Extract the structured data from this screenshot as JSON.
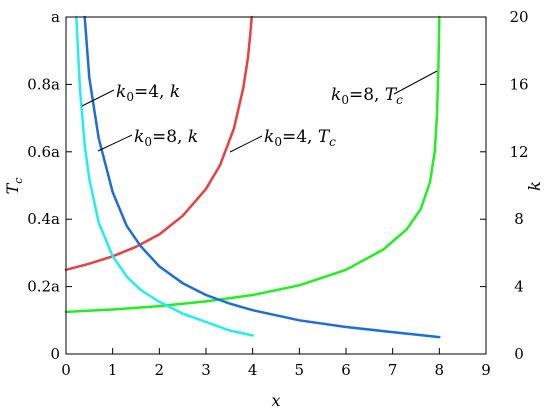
{
  "chart_data": {
    "type": "line",
    "title": "",
    "xlabel": "x",
    "ylabel_left": "T",
    "ylabel_left_sub": "c",
    "ylabel_right": "k",
    "xlim": [
      0,
      9
    ],
    "ylim_left": [
      0,
      1
    ],
    "ylim_right": [
      0,
      20
    ],
    "grid": false,
    "legend": "none",
    "x_ticks": [
      0,
      1,
      2,
      3,
      4,
      5,
      6,
      7,
      8,
      9
    ],
    "x_tick_labels": [
      "0",
      "1",
      "2",
      "3",
      "4",
      "5",
      "6",
      "7",
      "8",
      "9"
    ],
    "y_left_ticks": [
      0,
      0.2,
      0.4,
      0.6,
      0.8,
      1.0
    ],
    "y_left_tick_labels": [
      "0",
      "0.2a",
      "0.4a",
      "0.6a",
      "0.8a",
      "a"
    ],
    "y_right_ticks": [
      0,
      4,
      8,
      12,
      16,
      20
    ],
    "y_right_tick_labels": [
      "0",
      "4",
      "8",
      "12",
      "16",
      "20"
    ],
    "series": [
      {
        "axis": "left",
        "color": "#e84040",
        "x": [
          0,
          0.5,
          1.0,
          1.5,
          2.0,
          2.5,
          3.0,
          3.3,
          3.6,
          3.8,
          3.9,
          3.95,
          3.98
        ],
        "values": [
          0.25,
          0.268,
          0.29,
          0.318,
          0.355,
          0.41,
          0.49,
          0.56,
          0.67,
          0.79,
          0.88,
          0.95,
          1.0
        ]
      },
      {
        "axis": "left",
        "color": "#22ee22",
        "x": [
          0,
          1,
          2,
          3,
          4,
          5,
          6,
          6.8,
          7.3,
          7.6,
          7.8,
          7.9,
          7.95,
          7.98,
          8.0
        ],
        "values": [
          0.125,
          0.132,
          0.142,
          0.156,
          0.175,
          0.204,
          0.25,
          0.31,
          0.37,
          0.43,
          0.51,
          0.6,
          0.71,
          0.85,
          1.0
        ]
      },
      {
        "axis": "right",
        "color": "#22eeee",
        "x": [
          0.22,
          0.3,
          0.4,
          0.5,
          0.7,
          1.0,
          1.3,
          1.6,
          2.0,
          2.5,
          3.0,
          3.5,
          4.0
        ],
        "values": [
          20.0,
          15.7,
          12.4,
          10.4,
          7.8,
          5.8,
          4.6,
          3.8,
          3.1,
          2.4,
          1.9,
          1.4,
          1.1
        ]
      },
      {
        "axis": "right",
        "color": "#1f6dd6",
        "x": [
          0.4,
          0.5,
          0.7,
          1.0,
          1.3,
          1.6,
          2.0,
          2.5,
          3.0,
          3.5,
          4.0,
          5.0,
          6.0,
          7.0,
          8.0
        ],
        "values": [
          20.0,
          16.4,
          12.8,
          9.6,
          7.6,
          6.4,
          5.2,
          4.2,
          3.5,
          3.0,
          2.6,
          2.0,
          1.6,
          1.3,
          1.0
        ]
      }
    ],
    "annotations": [
      {
        "id": "ann-k04-k",
        "main": "k",
        "sub": "0",
        "rest": "=4, ",
        "var": "k",
        "varsub": ""
      },
      {
        "id": "ann-k08-k",
        "main": "k",
        "sub": "0",
        "rest": "=8, ",
        "var": "k",
        "varsub": ""
      },
      {
        "id": "ann-k04-tc",
        "main": "k",
        "sub": "0",
        "rest": "=4, ",
        "var": "T",
        "varsub": "c"
      },
      {
        "id": "ann-k08-tc",
        "main": "k",
        "sub": "0",
        "rest": "=8, ",
        "var": "T",
        "varsub": "c"
      }
    ]
  }
}
